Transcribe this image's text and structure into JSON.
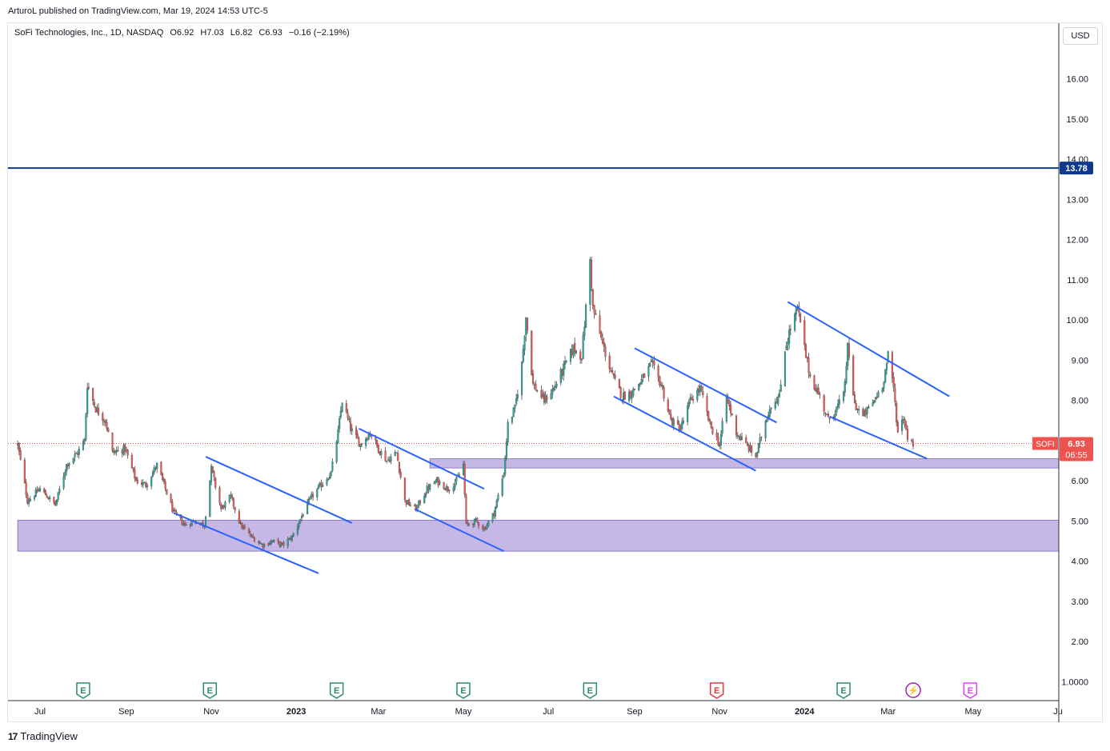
{
  "publisher": "ArturoL published on TradingView.com, Mar 19, 2024 14:53 UTC-5",
  "legend": {
    "symbol": "SoFi Technologies, Inc., 1D, NASDAQ",
    "open": "O6.92",
    "high": "H7.03",
    "low": "L6.82",
    "close": "C6.93",
    "change": "−0.16 (−2.19%)"
  },
  "currency": "USD",
  "footer": {
    "brand": "TradingView"
  },
  "colors": {
    "up": "#26a69a",
    "down": "#ef5350",
    "trendline": "#2962ff",
    "zone_fill": "#c5b8e6",
    "zone_stroke": "#8e7cc3",
    "hline": "#0d3a8c",
    "price_line": "#ef5350"
  },
  "chart_data": {
    "type": "candlestick",
    "title": "SoFi Technologies, Inc., 1D, NASDAQ",
    "ylim": [
      0.6,
      17.4
    ],
    "y_ticks": [
      "16.00",
      "15.00",
      "14.00",
      "13.00",
      "12.00",
      "11.00",
      "10.00",
      "9.00",
      "8.00",
      "7.00",
      "6.00",
      "5.00",
      "4.00",
      "3.00",
      "2.00",
      "1.0000"
    ],
    "x_ticks": [
      {
        "label": "Jul",
        "date": "2022-07-01",
        "bold": false
      },
      {
        "label": "Sep",
        "date": "2022-09-01",
        "bold": false
      },
      {
        "label": "Nov",
        "date": "2022-11-01",
        "bold": false
      },
      {
        "label": "2023",
        "date": "2023-01-01",
        "bold": true
      },
      {
        "label": "Mar",
        "date": "2023-03-01",
        "bold": false
      },
      {
        "label": "May",
        "date": "2023-05-01",
        "bold": false
      },
      {
        "label": "Jul",
        "date": "2023-07-01",
        "bold": false
      },
      {
        "label": "Sep",
        "date": "2023-09-01",
        "bold": false
      },
      {
        "label": "Nov",
        "date": "2023-11-01",
        "bold": false
      },
      {
        "label": "2024",
        "date": "2024-01-01",
        "bold": true
      },
      {
        "label": "Mar",
        "date": "2024-03-01",
        "bold": false
      },
      {
        "label": "May",
        "date": "2024-05-01",
        "bold": false
      },
      {
        "label": "Ju",
        "date": "2024-07-01",
        "bold": false
      }
    ],
    "price_path": [
      [
        "2022-06-15",
        6.9
      ],
      [
        "2022-06-22",
        5.5
      ],
      [
        "2022-07-01",
        5.8
      ],
      [
        "2022-07-12",
        5.4
      ],
      [
        "2022-07-20",
        6.4
      ],
      [
        "2022-07-28",
        6.7
      ],
      [
        "2022-08-02",
        7.0
      ],
      [
        "2022-08-04",
        8.4
      ],
      [
        "2022-08-10",
        7.8
      ],
      [
        "2022-08-17",
        7.5
      ],
      [
        "2022-08-22",
        6.7
      ],
      [
        "2022-08-31",
        6.8
      ],
      [
        "2022-09-08",
        6.0
      ],
      [
        "2022-09-15",
        5.9
      ],
      [
        "2022-09-23",
        6.4
      ],
      [
        "2022-09-29",
        5.8
      ],
      [
        "2022-10-05",
        5.2
      ],
      [
        "2022-10-13",
        4.9
      ],
      [
        "2022-10-20",
        5.0
      ],
      [
        "2022-10-27",
        4.9
      ],
      [
        "2022-11-01",
        6.3
      ],
      [
        "2022-11-08",
        5.3
      ],
      [
        "2022-11-15",
        5.6
      ],
      [
        "2022-11-22",
        4.9
      ],
      [
        "2022-11-30",
        4.6
      ],
      [
        "2022-12-08",
        4.4
      ],
      [
        "2022-12-15",
        4.5
      ],
      [
        "2022-12-22",
        4.4
      ],
      [
        "2022-12-29",
        4.6
      ],
      [
        "2023-01-06",
        5.2
      ],
      [
        "2023-01-12",
        5.6
      ],
      [
        "2023-01-19",
        5.9
      ],
      [
        "2023-01-26",
        6.2
      ],
      [
        "2023-01-31",
        7.2
      ],
      [
        "2023-02-03",
        8.0
      ],
      [
        "2023-02-09",
        7.3
      ],
      [
        "2023-02-16",
        6.9
      ],
      [
        "2023-02-23",
        7.2
      ],
      [
        "2023-03-01",
        6.8
      ],
      [
        "2023-03-07",
        6.5
      ],
      [
        "2023-03-14",
        6.7
      ],
      [
        "2023-03-20",
        5.5
      ],
      [
        "2023-03-28",
        5.3
      ],
      [
        "2023-04-05",
        5.8
      ],
      [
        "2023-04-12",
        6.0
      ],
      [
        "2023-04-20",
        5.8
      ],
      [
        "2023-04-26",
        6.0
      ],
      [
        "2023-05-01",
        6.4
      ],
      [
        "2023-05-03",
        4.9
      ],
      [
        "2023-05-10",
        5.0
      ],
      [
        "2023-05-16",
        4.8
      ],
      [
        "2023-05-23",
        5.2
      ],
      [
        "2023-05-30",
        6.2
      ],
      [
        "2023-06-02",
        7.4
      ],
      [
        "2023-06-07",
        7.8
      ],
      [
        "2023-06-12",
        8.9
      ],
      [
        "2023-06-15",
        10.1
      ],
      [
        "2023-06-20",
        8.4
      ],
      [
        "2023-06-28",
        8.0
      ],
      [
        "2023-07-05",
        8.3
      ],
      [
        "2023-07-12",
        8.8
      ],
      [
        "2023-07-19",
        9.3
      ],
      [
        "2023-07-25",
        9.1
      ],
      [
        "2023-07-31",
        11.5
      ],
      [
        "2023-08-02",
        10.3
      ],
      [
        "2023-08-09",
        9.4
      ],
      [
        "2023-08-16",
        8.6
      ],
      [
        "2023-08-23",
        8.1
      ],
      [
        "2023-08-30",
        8.2
      ],
      [
        "2023-09-06",
        8.5
      ],
      [
        "2023-09-13",
        8.9
      ],
      [
        "2023-09-20",
        8.4
      ],
      [
        "2023-09-27",
        7.5
      ],
      [
        "2023-10-04",
        7.3
      ],
      [
        "2023-10-11",
        8.0
      ],
      [
        "2023-10-18",
        8.3
      ],
      [
        "2023-10-25",
        7.4
      ],
      [
        "2023-11-01",
        6.9
      ],
      [
        "2023-11-06",
        8.1
      ],
      [
        "2023-11-13",
        7.2
      ],
      [
        "2023-11-20",
        6.9
      ],
      [
        "2023-11-27",
        6.6
      ],
      [
        "2023-12-04",
        7.5
      ],
      [
        "2023-12-08",
        7.9
      ],
      [
        "2023-12-14",
        8.1
      ],
      [
        "2023-12-18",
        9.3
      ],
      [
        "2023-12-22",
        9.8
      ],
      [
        "2023-12-27",
        10.3
      ],
      [
        "2024-01-02",
        9.1
      ],
      [
        "2024-01-05",
        8.6
      ],
      [
        "2024-01-12",
        8.1
      ],
      [
        "2024-01-18",
        7.5
      ],
      [
        "2024-01-24",
        7.8
      ],
      [
        "2024-01-29",
        8.1
      ],
      [
        "2024-02-01",
        9.3
      ],
      [
        "2024-02-06",
        7.9
      ],
      [
        "2024-02-12",
        7.6
      ],
      [
        "2024-02-20",
        8.0
      ],
      [
        "2024-02-26",
        8.4
      ],
      [
        "2024-03-01",
        9.1
      ],
      [
        "2024-03-05",
        8.3
      ],
      [
        "2024-03-08",
        7.2
      ],
      [
        "2024-03-12",
        7.6
      ],
      [
        "2024-03-15",
        7.1
      ],
      [
        "2024-03-19",
        6.93
      ]
    ],
    "earnings_markers": [
      {
        "date": "2022-08-01",
        "label": "E",
        "type": "beat"
      },
      {
        "date": "2022-10-31",
        "label": "E",
        "type": "beat"
      },
      {
        "date": "2023-01-30",
        "label": "E",
        "type": "beat"
      },
      {
        "date": "2023-05-01",
        "label": "E",
        "type": "beat"
      },
      {
        "date": "2023-07-31",
        "label": "E",
        "type": "beat"
      },
      {
        "date": "2023-10-30",
        "label": "E",
        "type": "miss"
      },
      {
        "date": "2024-01-29",
        "label": "E",
        "type": "beat"
      },
      {
        "date": "2024-03-19",
        "label": "⚡",
        "type": "dividend"
      },
      {
        "date": "2024-04-29",
        "label": "E",
        "type": "upcoming"
      }
    ],
    "horizontal_line": {
      "value": 13.78,
      "label": "13.78"
    },
    "zones": [
      {
        "x0": "2022-06-15",
        "x1": "2024-07-03",
        "y0": 4.25,
        "y1": 5.02
      },
      {
        "x0": "2023-04-07",
        "x1": "2024-07-03",
        "y0": 6.32,
        "y1": 6.55
      }
    ],
    "trendlines": [
      {
        "x0": "2022-10-05",
        "y0": 5.2,
        "x1": "2023-01-17",
        "y1": 3.7
      },
      {
        "x0": "2022-10-28",
        "y0": 6.6,
        "x1": "2023-02-10",
        "y1": 4.95
      },
      {
        "x0": "2023-03-27",
        "y0": 5.3,
        "x1": "2023-05-30",
        "y1": 4.25
      },
      {
        "x0": "2023-02-15",
        "y0": 7.3,
        "x1": "2023-05-16",
        "y1": 5.8
      },
      {
        "x0": "2023-08-17",
        "y0": 8.1,
        "x1": "2023-11-27",
        "y1": 6.25
      },
      {
        "x0": "2023-09-01",
        "y0": 9.3,
        "x1": "2023-12-12",
        "y1": 7.45
      },
      {
        "x0": "2024-01-19",
        "y0": 7.6,
        "x1": "2024-03-29",
        "y1": 6.55
      },
      {
        "x0": "2023-12-20",
        "y0": 10.45,
        "x1": "2024-04-14",
        "y1": 8.1
      }
    ],
    "last_price": {
      "value": 6.93,
      "symbol": "SOFI",
      "label": "6.93",
      "countdown": "06:55"
    }
  }
}
